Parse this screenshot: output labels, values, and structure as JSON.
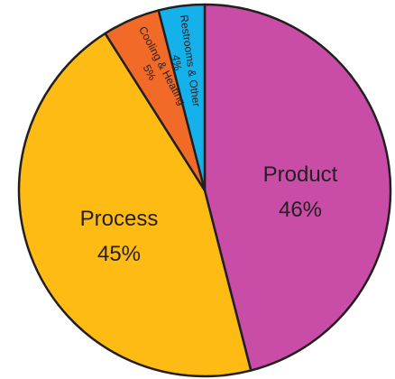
{
  "chart_data": {
    "type": "pie",
    "title": "",
    "slices": [
      {
        "label": "Product",
        "pct_text": "46%",
        "value": 46,
        "color": "#c94ca6"
      },
      {
        "label": "Process",
        "pct_text": "45%",
        "value": 45,
        "color": "#fdbb14"
      },
      {
        "label": "Cooling & Heating",
        "pct_text": "5%",
        "value": 5,
        "color": "#f26a27"
      },
      {
        "label": "Restrooms & Other",
        "pct_text": "4%",
        "value": 4,
        "color": "#15b1eb"
      }
    ],
    "legend": "none"
  }
}
